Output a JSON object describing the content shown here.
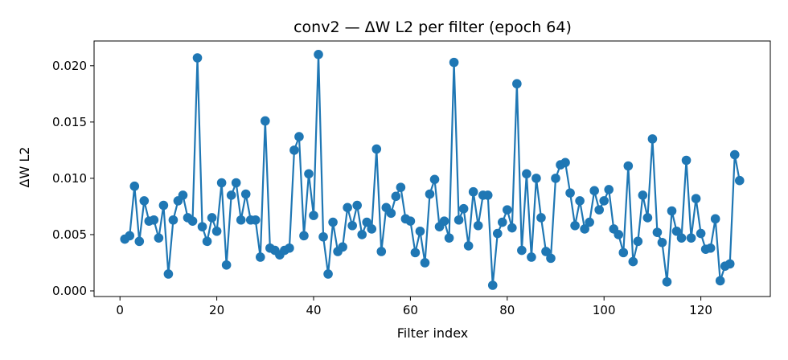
{
  "chart_data": {
    "type": "line",
    "title": "conv2 — ΔW L2 per filter (epoch 64)",
    "xlabel": "Filter index",
    "ylabel": "ΔW L2",
    "xlim": [
      -5.35,
      134.35
    ],
    "ylim": [
      -0.0005,
      0.0222
    ],
    "xticks": [
      0,
      20,
      40,
      60,
      80,
      100,
      120
    ],
    "yticks": [
      0.0,
      0.005,
      0.01,
      0.015,
      0.02
    ],
    "ytick_labels": [
      "0.000",
      "0.005",
      "0.010",
      "0.015",
      "0.020"
    ],
    "grid": false,
    "marker": "circle",
    "color": "#1f77b4",
    "x": [
      1,
      2,
      3,
      4,
      5,
      6,
      7,
      8,
      9,
      10,
      11,
      12,
      13,
      14,
      15,
      16,
      17,
      18,
      19,
      20,
      21,
      22,
      23,
      24,
      25,
      26,
      27,
      28,
      29,
      30,
      31,
      32,
      33,
      34,
      35,
      36,
      37,
      38,
      39,
      40,
      41,
      42,
      43,
      44,
      45,
      46,
      47,
      48,
      49,
      50,
      51,
      52,
      53,
      54,
      55,
      56,
      57,
      58,
      59,
      60,
      61,
      62,
      63,
      64,
      65,
      66,
      67,
      68,
      69,
      70,
      71,
      72,
      73,
      74,
      75,
      76,
      77,
      78,
      79,
      80,
      81,
      82,
      83,
      84,
      85,
      86,
      87,
      88,
      89,
      90,
      91,
      92,
      93,
      94,
      95,
      96,
      97,
      98,
      99,
      100,
      101,
      102,
      103,
      104,
      105,
      106,
      107,
      108,
      109,
      110,
      111,
      112,
      113,
      114,
      115,
      116,
      117,
      118,
      119,
      120,
      121,
      122,
      123,
      124,
      125,
      126,
      127,
      128
    ],
    "series": [
      {
        "values": [
          0.0046,
          0.0049,
          0.0093,
          0.0044,
          0.008,
          0.0062,
          0.0063,
          0.0047,
          0.0076,
          0.0015,
          0.0063,
          0.008,
          0.0085,
          0.0065,
          0.0062,
          0.0207,
          0.0057,
          0.0044,
          0.0065,
          0.0053,
          0.0096,
          0.0023,
          0.0085,
          0.0096,
          0.0063,
          0.0086,
          0.0063,
          0.0063,
          0.003,
          0.0151,
          0.0038,
          0.0036,
          0.0032,
          0.0036,
          0.0038,
          0.0125,
          0.0137,
          0.0049,
          0.0104,
          0.0067,
          0.021,
          0.0048,
          0.0015,
          0.0061,
          0.0035,
          0.0039,
          0.0074,
          0.0058,
          0.0076,
          0.005,
          0.0061,
          0.0055,
          0.0126,
          0.0035,
          0.0074,
          0.0069,
          0.0084,
          0.0092,
          0.0064,
          0.0062,
          0.0034,
          0.0053,
          0.0025,
          0.0086,
          0.0099,
          0.0057,
          0.0062,
          0.0047,
          0.0203,
          0.0063,
          0.0073,
          0.004,
          0.0088,
          0.0058,
          0.0085,
          0.0085,
          0.0005,
          0.0051,
          0.0061,
          0.0072,
          0.0056,
          0.0184,
          0.0036,
          0.0104,
          0.003,
          0.01,
          0.0065,
          0.0035,
          0.0029,
          0.01,
          0.0112,
          0.0114,
          0.0087,
          0.0058,
          0.008,
          0.0055,
          0.0061,
          0.0089,
          0.0072,
          0.008,
          0.009,
          0.0055,
          0.005,
          0.0034,
          0.0111,
          0.0026,
          0.0044,
          0.0085,
          0.0065,
          0.0135,
          0.0052,
          0.0043,
          0.0008,
          0.0071,
          0.0053,
          0.0047,
          0.0116,
          0.0047,
          0.0082,
          0.0051,
          0.0037,
          0.0038,
          0.0064,
          0.0009,
          0.0022,
          0.0024,
          0.0121,
          0.0098
        ]
      }
    ]
  }
}
